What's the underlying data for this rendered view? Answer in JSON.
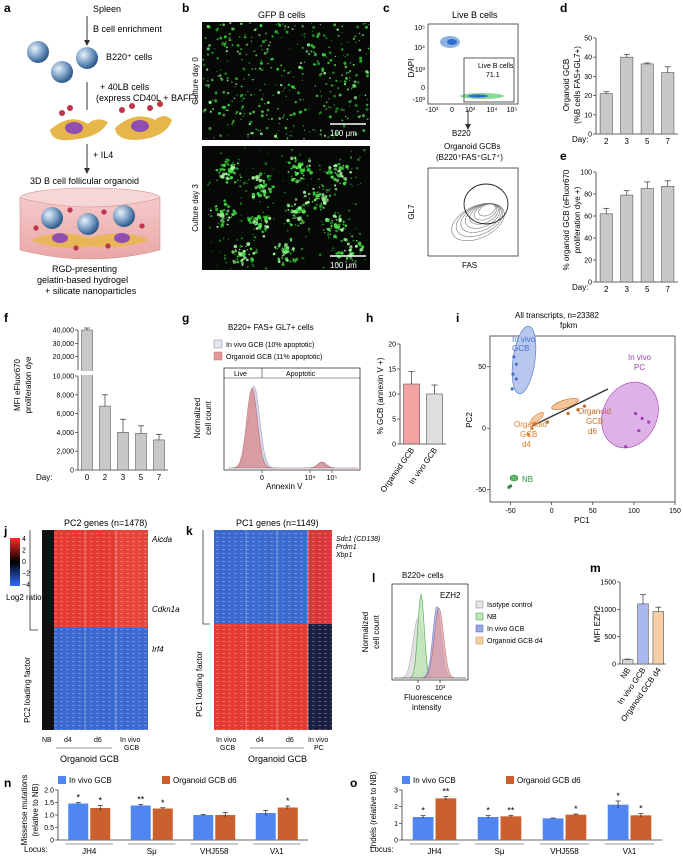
{
  "panels": {
    "a": {
      "label": "a",
      "steps": [
        "Spleen",
        "B cell enrichment",
        "B220⁺ cells",
        "+ 40LB cells",
        "(express CD40L + BAFF)",
        "+ IL4",
        "3D B cell follicular organoid"
      ],
      "hydrogel": [
        "RGD-presenting",
        "gelatin-based hydrogel",
        "+ silicate nanoparticles"
      ]
    },
    "b": {
      "label": "b",
      "title": "GFP B cells",
      "day0": "Culture day 0",
      "day3": "Culture day 3",
      "scale": "100 μm"
    },
    "c": {
      "label": "c",
      "top_title": "Live B cells",
      "gate": "Live B cells",
      "gate_value": "71.1",
      "yaxis_top": "DAPI",
      "xaxis_top": "B220",
      "ticks_y_top": [
        "10⁵",
        "10⁴",
        "10³",
        "0",
        "-10³"
      ],
      "ticks_x_top": [
        "-10³",
        "0",
        "10³",
        "10⁴",
        "10⁵"
      ],
      "bottom_title": "Organoid GCBs",
      "bottom_sub": "(B220⁺FAS⁺GL7⁺)",
      "yaxis_bottom": "GL7",
      "xaxis_bottom": "FAS"
    },
    "d": {
      "label": "d",
      "ylabel_line1": "Organoid GCB",
      "ylabel_line2": "(%B cells FAS+GL7+)",
      "daylabel": "Day:"
    },
    "e": {
      "label": "e",
      "ylabel_line1": "% organoid GCB (eFluor670",
      "ylabel_line2": "proliferation dye +)",
      "daylabel": "Day:"
    },
    "f": {
      "label": "f",
      "ylabel_line1": "MFI eFluor670",
      "ylabel_line2": "proliferation dye",
      "daylabel": "Day:"
    },
    "g": {
      "label": "g",
      "title": "B220+ FAS+ GL7+ cells",
      "legend": [
        "In vivo GCB (10% apoptotic)",
        "Organoid GCB (11% apoptotic)"
      ],
      "live": "Live",
      "apoptotic": "Apoptotic",
      "ylabel_line1": "Normalized",
      "ylabel_line2": "cell count",
      "xlabel": "Annexin V",
      "ticks_x": [
        "0",
        "10⁴",
        "10⁵"
      ]
    },
    "h": {
      "label": "h",
      "ylabel": "% GCB (annexin V +)"
    },
    "i": {
      "label": "i",
      "title_line1": "All transcripts, n=23382",
      "title_line2": "fpkm",
      "xlabel": "PC1",
      "ylabel": "PC2",
      "groups": [
        "In vivo",
        "GCB",
        "In vivo",
        "PC",
        "Organoid",
        "GCB",
        "d6",
        "Organoid",
        "GCB",
        "d4",
        "NB"
      ]
    },
    "j": {
      "label": "j",
      "title": "PC2 genes (n=1478)",
      "genes": [
        "Aicda",
        "Cdkn1a",
        "Irf4"
      ],
      "ylabel": "PC2 loading factor",
      "cbar_ticks": [
        "4",
        "2",
        "0",
        "−2",
        "−4"
      ],
      "cbar_label": "Log2 ratio",
      "cols": [
        "NB",
        "d4",
        "d6",
        "In vivo",
        "GCB"
      ],
      "group": "Organoid GCB"
    },
    "k": {
      "label": "k",
      "title": "PC1 genes (n=1149)",
      "genes": [
        "Sdc1 (CD138)",
        "Prdm1",
        "Xbp1"
      ],
      "ylabel": "PC1 loading factor",
      "cols": [
        "In vivo",
        "GCB",
        "d4",
        "d6",
        "In vivo",
        "PC"
      ],
      "group": "Organoid GCB"
    },
    "l": {
      "label": "l",
      "title": "B220+ cells",
      "marker": "EZH2",
      "legend": [
        "Isotype control",
        "NB",
        "In vivo GCB",
        "Organoid GCB d4"
      ],
      "ylabel_line1": "Normalized",
      "ylabel_line2": "cell count",
      "xlabel_line1": "Fluorescence",
      "xlabel_line2": "intensity",
      "ticks_x": [
        "0",
        "10³"
      ]
    },
    "m": {
      "label": "m",
      "ylabel": "MFI EZH2"
    },
    "n": {
      "label": "n",
      "legend": [
        "In vivo GCB",
        "Organoid GCB d6"
      ],
      "ylabel_line1": "Missense mutations",
      "ylabel_line2": "(relative to NB)",
      "locus": "Locus:"
    },
    "o": {
      "label": "o",
      "legend": [
        "In vivo GCB",
        "Organoid GCB d6"
      ],
      "ylabel": "Indels (relative to NB)",
      "locus": "Locus:"
    }
  },
  "chart_data": [
    {
      "id": "d",
      "type": "bar",
      "categories": [
        "2",
        "3",
        "5",
        "7"
      ],
      "values": [
        21,
        40,
        36.5,
        32
      ],
      "errors": [
        1,
        1.5,
        0.5,
        3
      ],
      "ylim": [
        0,
        50
      ],
      "yticks": [
        0,
        10,
        20,
        30,
        40,
        50
      ],
      "color": "#c8c8c8"
    },
    {
      "id": "e",
      "type": "bar",
      "categories": [
        "2",
        "3",
        "5",
        "7"
      ],
      "values": [
        62,
        79,
        85,
        87
      ],
      "errors": [
        5,
        4,
        6,
        5
      ],
      "ylim": [
        0,
        100
      ],
      "yticks": [
        0,
        20,
        40,
        60,
        80,
        100
      ],
      "color": "#c8c8c8"
    },
    {
      "id": "f",
      "type": "bar",
      "categories": [
        "0",
        "2",
        "3",
        "5",
        "7"
      ],
      "values": [
        40000,
        6800,
        4000,
        3900,
        3200
      ],
      "errors": [
        1500,
        1200,
        1400,
        800,
        600
      ],
      "yticks": [
        0,
        2000,
        4000,
        6000,
        8000,
        10000,
        20000,
        30000,
        40000
      ],
      "ytick_labels": [
        "0",
        "2,000",
        "4,000",
        "6,000",
        "8,000",
        "10,000",
        "20,000",
        "30,000",
        "40,000"
      ],
      "color": "#c8c8c8"
    },
    {
      "id": "h",
      "type": "bar",
      "categories": [
        "Organoid GCB",
        "In vivo GCB"
      ],
      "values": [
        12,
        10
      ],
      "errors": [
        2.5,
        1.8
      ],
      "ylim": [
        0,
        20
      ],
      "yticks": [
        0,
        5,
        10,
        15,
        20
      ],
      "colors": [
        "#f4a3a3",
        "#dedede"
      ]
    },
    {
      "id": "i",
      "type": "scatter",
      "xlim": [
        -75,
        150
      ],
      "ylim": [
        -60,
        75
      ],
      "xticks": [
        -50,
        0,
        50,
        100,
        150
      ],
      "yticks": [
        -50,
        0,
        50
      ],
      "series": [
        {
          "name": "In vivo GCB",
          "color": "#4a6fc9",
          "points": [
            [
              -46,
              58
            ],
            [
              -43,
              52
            ],
            [
              -47,
              44
            ],
            [
              -43,
              40
            ],
            [
              -48,
              32
            ]
          ]
        },
        {
          "name": "In vivo PC",
          "color": "#a23db3",
          "points": [
            [
              102,
              12
            ],
            [
              110,
              8
            ],
            [
              118,
              5
            ],
            [
              106,
              -2
            ],
            [
              90,
              -15
            ]
          ]
        },
        {
          "name": "Organoid GCB d6",
          "color": "#c26a1e",
          "points": [
            [
              -5,
              5
            ],
            [
              20,
              12
            ],
            [
              32,
              15
            ],
            [
              40,
              18
            ]
          ]
        },
        {
          "name": "Organoid GCB d4",
          "color": "#e07b2a",
          "points": [
            [
              -28,
              -5
            ],
            [
              -24,
              0
            ],
            [
              -20,
              4
            ]
          ]
        },
        {
          "name": "NB",
          "color": "#2e8b3a",
          "points": [
            [
              -52,
              -48
            ],
            [
              -50,
              -47
            ]
          ]
        }
      ]
    },
    {
      "id": "m",
      "type": "bar",
      "categories": [
        "NB",
        "In vivo GCB",
        "Organoid GCB d4"
      ],
      "values": [
        80,
        1100,
        960
      ],
      "errors": [
        10,
        170,
        80
      ],
      "ylim": [
        0,
        1500
      ],
      "yticks": [
        0,
        500,
        1000,
        1500
      ],
      "colors": [
        "#d8d8d8",
        "#a9b8ee",
        "#f7cfa6"
      ]
    },
    {
      "id": "n",
      "type": "bar",
      "categories": [
        "JH4",
        "Sμ",
        "VHJ558",
        "Vλ1"
      ],
      "ylim": [
        0,
        2.0
      ],
      "yticks": [
        0,
        0.5,
        1.0,
        1.5,
        2.0
      ],
      "ytick_labels": [
        "0",
        "0.5",
        "1.0",
        "1.5",
        "2.0"
      ],
      "series": [
        {
          "name": "In vivo GCB",
          "color": "#4f86f0",
          "values": [
            1.46,
            1.38,
            1.0,
            1.08
          ],
          "errors": [
            0.04,
            0.04,
            0.02,
            0.1
          ],
          "sig": [
            "*",
            "**",
            "",
            ""
          ]
        },
        {
          "name": "Organoid GCB d6",
          "color": "#c9602d",
          "values": [
            1.28,
            1.26,
            1.0,
            1.3
          ],
          "errors": [
            0.1,
            0.03,
            0.1,
            0.06
          ],
          "sig": [
            "*",
            "*",
            "",
            "*"
          ]
        }
      ]
    },
    {
      "id": "o",
      "type": "bar",
      "categories": [
        "JH4",
        "Sμ",
        "VHJ558",
        "Vλ1"
      ],
      "ylim": [
        0,
        3
      ],
      "yticks": [
        0,
        1,
        2,
        3
      ],
      "ytick_labels": [
        "0",
        "1",
        "2",
        "3"
      ],
      "series": [
        {
          "name": "In vivo GCB",
          "color": "#4f86f0",
          "values": [
            1.38,
            1.38,
            1.3,
            2.12
          ],
          "errors": [
            0.08,
            0.08,
            0.02,
            0.22
          ],
          "sig": [
            "*",
            "*",
            "",
            "*"
          ]
        },
        {
          "name": "Organoid GCB d6",
          "color": "#c9602d",
          "values": [
            2.5,
            1.42,
            1.52,
            1.48
          ],
          "errors": [
            0.1,
            0.06,
            0.04,
            0.1
          ],
          "sig": [
            "**",
            "**",
            "*",
            "*"
          ]
        }
      ]
    }
  ]
}
